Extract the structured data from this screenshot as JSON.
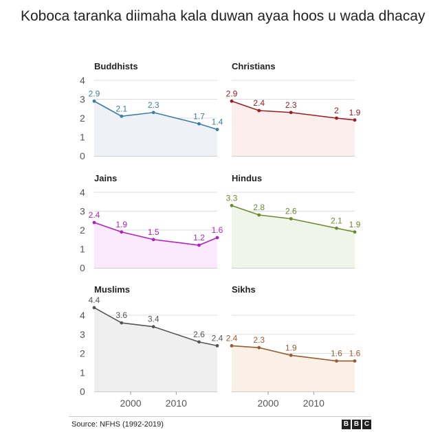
{
  "title": "Koboca taranka diimaha kala duwan ayaa hoos u wada dhacay",
  "source": "Source: NFHS (1992-2019)",
  "logo": [
    "B",
    "B",
    "C"
  ],
  "chart_data": {
    "type": "line",
    "ylim": [
      0,
      4
    ],
    "yticks": [
      "0",
      "1",
      "2",
      "3",
      "4"
    ],
    "xticks": [
      {
        "x": 2000,
        "label": "2000"
      },
      {
        "x": 2010,
        "label": "2010"
      }
    ],
    "xlim": [
      1992,
      2019
    ],
    "x": [
      1992,
      1998,
      2005,
      2015,
      2019
    ],
    "panels": [
      {
        "name": "Buddhists",
        "color": "#3a7fa3",
        "fill": "#eef2f6",
        "values": [
          2.9,
          2.1,
          2.3,
          1.7,
          1.4
        ],
        "labels": [
          "2.9",
          "2.1",
          "2.3",
          "1.7",
          "1.4"
        ]
      },
      {
        "name": "Christians",
        "color": "#9c1c22",
        "fill": "#fdeeee",
        "values": [
          2.9,
          2.4,
          2.3,
          2.0,
          1.9
        ],
        "labels": [
          "2.9",
          "2.4",
          "2.3",
          "2",
          "1.9"
        ]
      },
      {
        "name": "Jains",
        "color": "#b51fc2",
        "fill": "#fbeafd",
        "values": [
          2.4,
          1.9,
          1.5,
          1.2,
          1.6
        ],
        "labels": [
          "2.4",
          "1.9",
          "1.5",
          "1.2",
          "1.6"
        ]
      },
      {
        "name": "Hindus",
        "color": "#6a8a2a",
        "fill": "#f0f5ea",
        "values": [
          3.3,
          2.8,
          2.6,
          2.1,
          1.9
        ],
        "labels": [
          "3.3",
          "2.8",
          "2.6",
          "2.1",
          "1.9"
        ]
      },
      {
        "name": "Muslims",
        "color": "#555555",
        "fill": "#efefef",
        "values": [
          4.4,
          3.6,
          3.4,
          2.6,
          2.4
        ],
        "labels": [
          "4.4",
          "3.6",
          "3.4",
          "2.6",
          "2.4"
        ]
      },
      {
        "name": "Sikhs",
        "color": "#9a5a2e",
        "fill": "#fbf0e6",
        "values": [
          2.4,
          2.3,
          1.9,
          1.6,
          1.6
        ],
        "labels": [
          "2.4",
          "2.3",
          "1.9",
          "1.6",
          "1.6"
        ]
      }
    ]
  }
}
